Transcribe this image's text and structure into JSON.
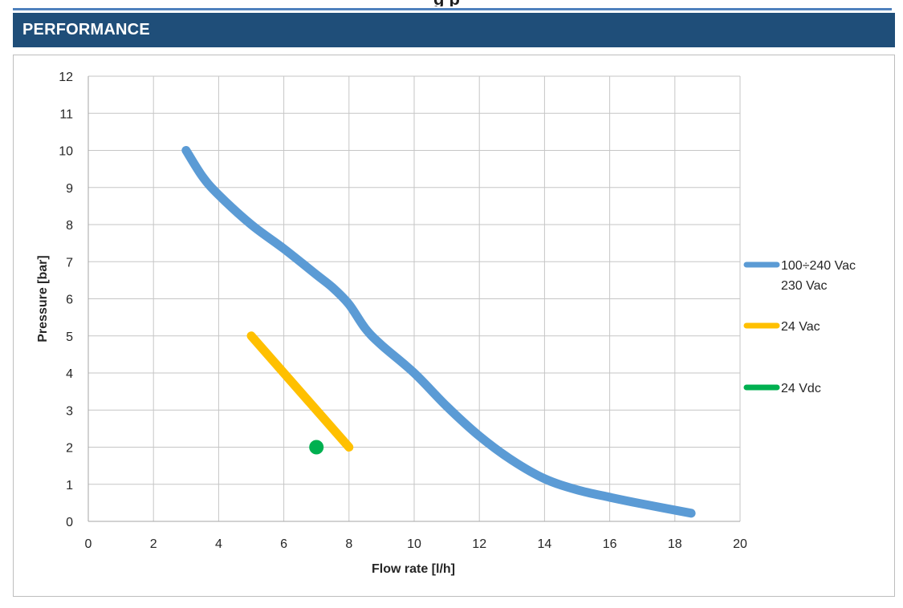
{
  "header": {
    "title": "PERFORMANCE",
    "colors": {
      "bar": "#1f4e79",
      "accent_line": "#4f81bd",
      "text": "#ffffff"
    }
  },
  "chart_data": {
    "type": "line",
    "title": "",
    "xlabel": "Flow rate [l/h]",
    "ylabel": "Pressure [bar]",
    "xlim": [
      0,
      20
    ],
    "ylim": [
      0,
      12
    ],
    "xticks": [
      "0",
      "2",
      "4",
      "6",
      "8",
      "10",
      "12",
      "14",
      "16",
      "18",
      "20"
    ],
    "yticks": [
      "0",
      "1",
      "2",
      "3",
      "4",
      "5",
      "6",
      "7",
      "8",
      "9",
      "10",
      "11",
      "12"
    ],
    "grid": true,
    "legend_position": "right",
    "series": [
      {
        "name": "100÷240 Vac",
        "name_line2": "230 Vac",
        "color": "#5b9bd5",
        "x": [
          3,
          3.5,
          4,
          5,
          6,
          7,
          7.5,
          8,
          8.5,
          9,
          10,
          11,
          12,
          13,
          14,
          15,
          16,
          17,
          18.5
        ],
        "y": [
          10,
          9.3,
          8.8,
          8.0,
          7.35,
          6.65,
          6.3,
          5.85,
          5.2,
          4.75,
          4.0,
          3.1,
          2.3,
          1.65,
          1.15,
          0.85,
          0.65,
          0.47,
          0.22
        ]
      },
      {
        "name": "24 Vac",
        "color": "#ffc000",
        "x": [
          5,
          8
        ],
        "y": [
          5,
          2
        ]
      },
      {
        "name": "24 Vdc",
        "color": "#00b050",
        "x": [
          7
        ],
        "y": [
          2
        ]
      }
    ]
  }
}
